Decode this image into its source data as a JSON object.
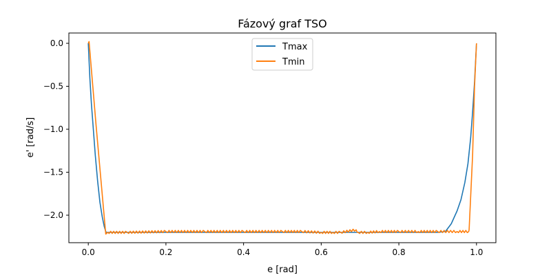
{
  "chart_data": {
    "type": "line",
    "title": "Fázový graf TSO",
    "xlabel": "e [rad]",
    "ylabel": "e' [rad/s]",
    "xlim": [
      -0.05,
      1.05
    ],
    "ylim": [
      -2.32,
      0.12
    ],
    "xticks": [
      0.0,
      0.2,
      0.4,
      0.6,
      0.8,
      1.0
    ],
    "xtick_labels": [
      "0.0",
      "0.2",
      "0.4",
      "0.6",
      "0.8",
      "1.0"
    ],
    "yticks": [
      0.0,
      -0.5,
      -1.0,
      -1.5,
      -2.0
    ],
    "ytick_labels": [
      "0.0",
      "−0.5",
      "−1.0",
      "−1.5",
      "−2.0"
    ],
    "grid": false,
    "legend": "upper-center",
    "series": [
      {
        "name": "Tmax",
        "color": "#1f77b4",
        "x": [
          0.0,
          0.004,
          0.008,
          0.013,
          0.018,
          0.024,
          0.03,
          0.036,
          0.041,
          0.045,
          0.046,
          0.1,
          0.2,
          0.3,
          0.4,
          0.5,
          0.6,
          0.7,
          0.8,
          0.9,
          0.92,
          0.935,
          0.95,
          0.96,
          0.97,
          0.978,
          0.985,
          0.99,
          0.995,
          1.0
        ],
        "y": [
          0.0,
          -0.4,
          -0.7,
          -1.0,
          -1.3,
          -1.6,
          -1.85,
          -2.02,
          -2.13,
          -2.19,
          -2.2,
          -2.2,
          -2.2,
          -2.2,
          -2.2,
          -2.2,
          -2.2,
          -2.2,
          -2.2,
          -2.2,
          -2.19,
          -2.1,
          -1.95,
          -1.82,
          -1.62,
          -1.4,
          -1.1,
          -0.8,
          -0.45,
          0.0
        ]
      },
      {
        "name": "Tmin",
        "color": "#ff7f0e",
        "x": [
          0.0,
          0.002,
          0.02,
          0.045,
          0.05,
          0.1,
          0.2,
          0.3,
          0.4,
          0.5,
          0.55,
          0.6,
          0.63,
          0.65,
          0.69,
          0.695,
          0.72,
          0.75,
          0.8,
          0.85,
          0.9,
          0.95,
          0.98,
          0.981,
          0.99,
          0.995,
          1.0
        ],
        "y": [
          0.0,
          0.02,
          -0.95,
          -2.22,
          -2.2,
          -2.2,
          -2.19,
          -2.19,
          -2.19,
          -2.19,
          -2.19,
          -2.2,
          -2.2,
          -2.2,
          -2.17,
          -2.2,
          -2.2,
          -2.19,
          -2.19,
          -2.19,
          -2.19,
          -2.19,
          -2.19,
          -2.17,
          -1.3,
          -0.5,
          0.0
        ]
      }
    ],
    "oscillation": {
      "series": "Tmin",
      "x_start": 0.05,
      "x_end": 0.98,
      "amplitude": 0.025
    }
  }
}
